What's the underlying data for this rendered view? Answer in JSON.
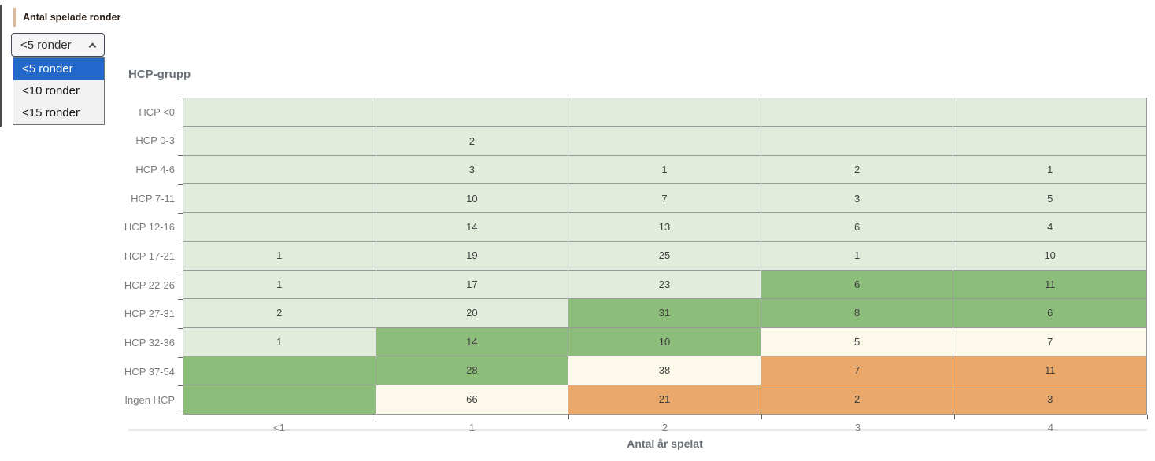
{
  "filter": {
    "label": "Antal spelade ronder",
    "selected_value": "<5 ronder",
    "expanded": true,
    "options": [
      {
        "label": "<5 ronder",
        "selected": true
      },
      {
        "label": "<10 ronder",
        "selected": false
      },
      {
        "label": "<15 ronder",
        "selected": false
      }
    ]
  },
  "chart_data": {
    "type": "heatmap",
    "title": "HCP-grupp",
    "xlabel": "Antal år spelat",
    "ylabel": "HCP-grupp",
    "x_categories": [
      "<1",
      "1",
      "2",
      "3",
      "4"
    ],
    "y_categories": [
      "HCP <0",
      "HCP 0-3",
      "HCP 4-6",
      "HCP 7-11",
      "HCP 12-16",
      "HCP 17-21",
      "HCP 22-26",
      "HCP 27-31",
      "HCP 32-36",
      "HCP 37-54",
      "Ingen HCP"
    ],
    "values": [
      [
        null,
        null,
        null,
        null,
        null
      ],
      [
        null,
        2,
        null,
        null,
        null
      ],
      [
        null,
        3,
        1,
        2,
        1
      ],
      [
        null,
        10,
        7,
        3,
        5
      ],
      [
        null,
        14,
        13,
        6,
        4
      ],
      [
        1,
        19,
        25,
        1,
        10
      ],
      [
        1,
        17,
        23,
        6,
        11
      ],
      [
        2,
        20,
        31,
        8,
        6
      ],
      [
        1,
        14,
        10,
        5,
        7
      ],
      [
        null,
        28,
        38,
        7,
        11
      ],
      [
        null,
        66,
        21,
        2,
        3
      ]
    ],
    "cell_colors": [
      [
        "light",
        "light",
        "light",
        "light",
        "light"
      ],
      [
        "light",
        "light",
        "light",
        "light",
        "light"
      ],
      [
        "light",
        "light",
        "light",
        "light",
        "light"
      ],
      [
        "light",
        "light",
        "light",
        "light",
        "light"
      ],
      [
        "light",
        "light",
        "light",
        "light",
        "light"
      ],
      [
        "light",
        "light",
        "light",
        "light",
        "light"
      ],
      [
        "light",
        "light",
        "light",
        "green",
        "green"
      ],
      [
        "light",
        "light",
        "green",
        "green",
        "green"
      ],
      [
        "light",
        "green",
        "green",
        "cream",
        "cream"
      ],
      [
        "green",
        "green",
        "cream",
        "orange",
        "orange"
      ],
      [
        "green",
        "cream",
        "orange",
        "orange",
        "orange"
      ]
    ],
    "palette": {
      "light": "#e2ecdd",
      "green": "#8cbd7a",
      "cream": "#fcf9ea",
      "orange": "#eba86b"
    },
    "grid": true,
    "legend_position": "none"
  },
  "ui_colors": {
    "option_highlight": "#2268cb",
    "slicer_accent_bar": "#d9ba96",
    "gridline": "#999999"
  }
}
